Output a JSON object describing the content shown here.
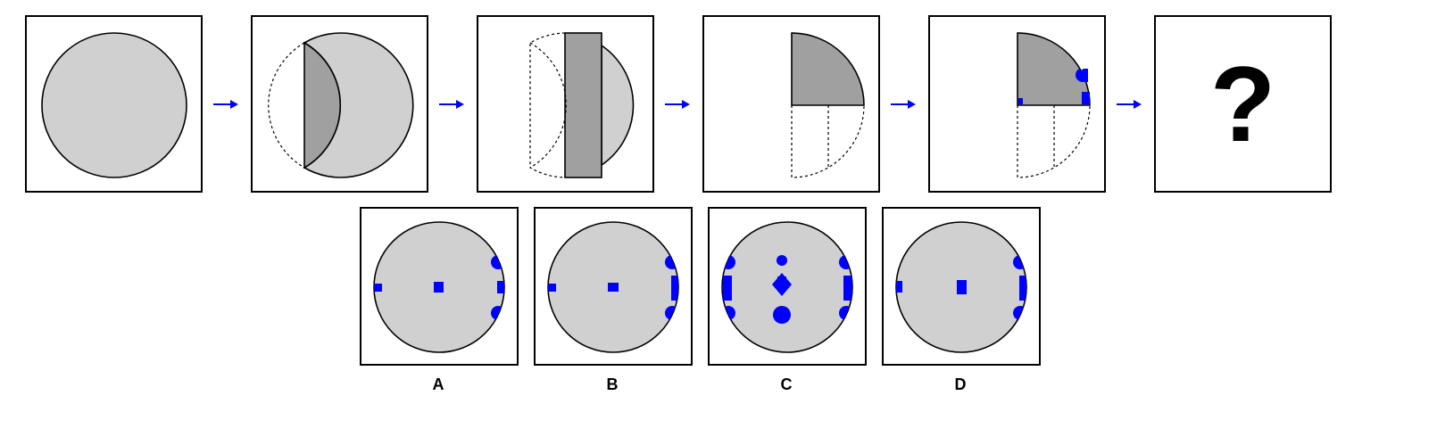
{
  "sequence": {
    "step_count": 6,
    "unknown_symbol": "?"
  },
  "options": [
    {
      "label": "A"
    },
    {
      "label": "B"
    },
    {
      "label": "C"
    },
    {
      "label": "D"
    }
  ],
  "colors": {
    "paper_light": "#d0d0d0",
    "paper_dark": "#a0a0a0",
    "hole_blue": "#0000ff",
    "arrow_blue": "#0000ff",
    "outline": "#000000"
  },
  "icons": {
    "arrow": "right-arrow-icon"
  }
}
